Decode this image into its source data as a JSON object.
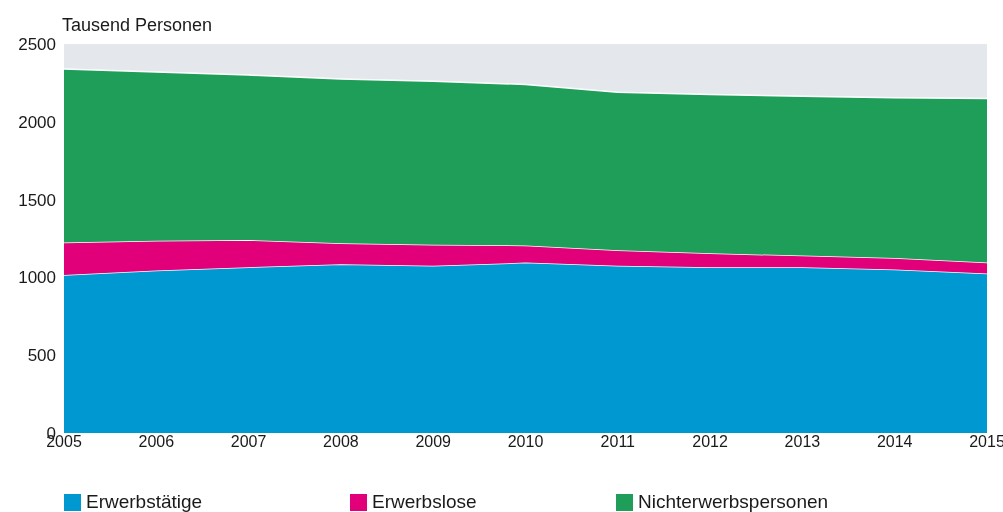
{
  "chart_data": {
    "type": "area",
    "ylabel": "Tausend Personen",
    "stacked": true,
    "legend": "bottom",
    "x": [
      2005,
      2006,
      2007,
      2008,
      2009,
      2010,
      2011,
      2012,
      2013,
      2014,
      2015
    ],
    "xlim": [
      2005,
      2015
    ],
    "xticks": [
      2005,
      2006,
      2007,
      2008,
      2009,
      2010,
      2011,
      2012,
      2013,
      2014,
      2015
    ],
    "ylim": [
      0,
      2500
    ],
    "yticks": [
      0,
      500,
      1000,
      1500,
      2000,
      2500
    ],
    "series": [
      {
        "name": "Erwerbstätige",
        "color": "#0098d1",
        "values": [
          1015,
          1045,
          1065,
          1085,
          1075,
          1095,
          1075,
          1065,
          1065,
          1050,
          1025
        ]
      },
      {
        "name": "Erwerbslose",
        "color": "#e2007a",
        "values": [
          210,
          190,
          175,
          135,
          135,
          110,
          100,
          90,
          75,
          75,
          70
        ]
      },
      {
        "name": "Nichterwerbspersonen",
        "color": "#1e9e58",
        "values": [
          1115,
          1085,
          1060,
          1055,
          1050,
          1035,
          1015,
          1020,
          1025,
          1030,
          1055
        ]
      }
    ]
  }
}
